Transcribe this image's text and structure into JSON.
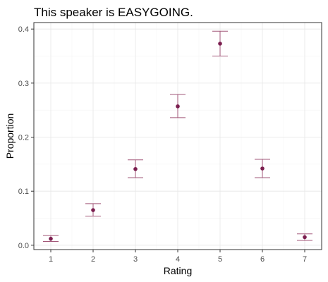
{
  "chart_data": {
    "type": "scatter",
    "title": "This speaker is EASYGOING.",
    "xlabel": "Rating",
    "ylabel": "Proportion",
    "xlim": [
      0.6,
      7.4
    ],
    "ylim": [
      -0.008,
      0.412
    ],
    "x_ticks": [
      1,
      2,
      3,
      4,
      5,
      6,
      7
    ],
    "y_ticks": [
      0.0,
      0.1,
      0.2,
      0.3,
      0.4
    ],
    "x_tick_labels": [
      "1",
      "2",
      "3",
      "4",
      "5",
      "6",
      "7"
    ],
    "y_tick_labels": [
      "0.0",
      "0.1",
      "0.2",
      "0.3",
      "0.4"
    ],
    "grid": true,
    "point_color": "#7b1e4f",
    "errorbar_color": "#a25778",
    "points": [
      {
        "x": 1,
        "y": 0.012,
        "ymin": 0.007,
        "ymax": 0.018
      },
      {
        "x": 2,
        "y": 0.065,
        "ymin": 0.054,
        "ymax": 0.077
      },
      {
        "x": 3,
        "y": 0.141,
        "ymin": 0.125,
        "ymax": 0.158
      },
      {
        "x": 4,
        "y": 0.257,
        "ymin": 0.236,
        "ymax": 0.279
      },
      {
        "x": 5,
        "y": 0.373,
        "ymin": 0.35,
        "ymax": 0.396
      },
      {
        "x": 6,
        "y": 0.142,
        "ymin": 0.125,
        "ymax": 0.159
      },
      {
        "x": 7,
        "y": 0.015,
        "ymin": 0.009,
        "ymax": 0.021
      }
    ]
  }
}
